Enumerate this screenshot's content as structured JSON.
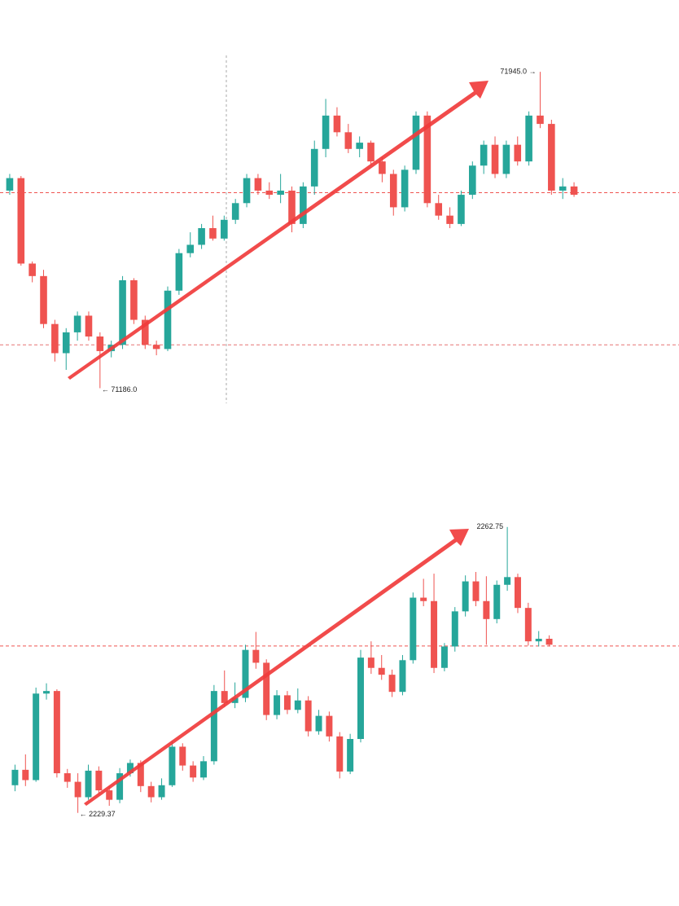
{
  "chart_data": [
    {
      "type": "candlestick",
      "up_color": "#26a69a",
      "down_color": "#ef5350",
      "ylim": [
        71140,
        72000
      ],
      "price_lines": [
        {
          "value": 71655,
          "color": "#ef5350"
        },
        {
          "value": 71290,
          "color": "#e57373"
        }
      ],
      "annotations": [
        {
          "text": "71945.0 →",
          "at": "high"
        },
        {
          "text": "← 71186.0",
          "at": "low"
        }
      ],
      "open": [
        71660,
        71690,
        71485,
        71455,
        71340,
        71270,
        71320,
        71360,
        71310,
        71275,
        71290,
        71445,
        71350,
        71290,
        71280,
        71420,
        71510,
        71530,
        71570,
        71545,
        71590,
        71630,
        71690,
        71660,
        71650,
        71660,
        71580,
        71670,
        71760,
        71840,
        71800,
        71760,
        71775,
        71730,
        71700,
        71620,
        71710,
        71840,
        71630,
        71600,
        71580,
        71650,
        71720,
        71770,
        71700,
        71770,
        71730,
        71840,
        71820,
        71660,
        71670
      ],
      "high": [
        71700,
        71695,
        71490,
        71470,
        71350,
        71330,
        71370,
        71370,
        71320,
        71300,
        71455,
        71450,
        71360,
        71300,
        71430,
        71520,
        71560,
        71580,
        71600,
        71600,
        71640,
        71700,
        71700,
        71680,
        71700,
        71670,
        71680,
        71780,
        71880,
        71860,
        71820,
        71790,
        71780,
        71740,
        71710,
        71720,
        71850,
        71850,
        71650,
        71620,
        71660,
        71730,
        71780,
        71790,
        71780,
        71790,
        71850,
        71945,
        71830,
        71690,
        71680
      ],
      "low": [
        71650,
        71480,
        71440,
        71330,
        71250,
        71230,
        71300,
        71300,
        71186,
        71260,
        71280,
        71340,
        71280,
        71265,
        71275,
        71410,
        71500,
        71520,
        71540,
        71540,
        71580,
        71620,
        71650,
        71640,
        71630,
        71560,
        71570,
        71650,
        71740,
        71790,
        71750,
        71740,
        71720,
        71680,
        71600,
        71610,
        71700,
        71620,
        71590,
        71570,
        71575,
        71640,
        71700,
        71690,
        71690,
        71720,
        71720,
        71810,
        71650,
        71640,
        71645
      ],
      "close": [
        71690,
        71485,
        71455,
        71340,
        71270,
        71320,
        71360,
        71310,
        71275,
        71290,
        71445,
        71350,
        71290,
        71280,
        71420,
        71510,
        71530,
        71570,
        71545,
        71590,
        71630,
        71690,
        71660,
        71650,
        71660,
        71580,
        71670,
        71760,
        71840,
        71800,
        71760,
        71775,
        71730,
        71700,
        71620,
        71710,
        71840,
        71630,
        71600,
        71580,
        71650,
        71720,
        71770,
        71700,
        71770,
        71730,
        71840,
        71820,
        71660,
        71670,
        71650
      ]
    },
    {
      "type": "candlestick",
      "up_color": "#26a69a",
      "down_color": "#ef5350",
      "ylim": [
        2226.3,
        2265.3
      ],
      "price_lines": [
        {
          "value": 2248.85,
          "color": "#ef5350"
        }
      ],
      "annotations": [
        {
          "text": "2262.75",
          "at": "high"
        },
        {
          "text": "← 2229.37",
          "at": "low"
        }
      ],
      "open": [
        2232.6,
        2234.4,
        2233.2,
        2243.3,
        2243.6,
        2234.0,
        2233.0,
        2231.2,
        2234.3,
        2232.0,
        2230.9,
        2234.0,
        2235.2,
        2232.5,
        2231.2,
        2232.6,
        2237.1,
        2234.9,
        2233.5,
        2235.4,
        2243.6,
        2242.2,
        2242.8,
        2248.4,
        2246.9,
        2240.8,
        2243.1,
        2241.4,
        2242.5,
        2238.9,
        2240.7,
        2238.3,
        2234.2,
        2238.0,
        2247.5,
        2246.3,
        2245.5,
        2243.5,
        2247.2,
        2254.5,
        2254.1,
        2246.3,
        2248.8,
        2252.9,
        2256.4,
        2254.1,
        2252.0,
        2256.0,
        2256.9,
        2253.3,
        2249.4,
        2249.7
      ],
      "high": [
        2235.0,
        2236.2,
        2244.0,
        2244.5,
        2243.8,
        2234.5,
        2234.0,
        2235.0,
        2234.8,
        2232.5,
        2234.6,
        2235.6,
        2235.5,
        2233.0,
        2233.4,
        2237.8,
        2237.5,
        2235.4,
        2236.0,
        2244.3,
        2246.0,
        2244.6,
        2249.0,
        2250.5,
        2247.3,
        2243.7,
        2243.6,
        2243.9,
        2243.0,
        2241.4,
        2241.2,
        2238.8,
        2238.6,
        2248.4,
        2249.4,
        2247.8,
        2246.1,
        2247.8,
        2255.1,
        2256.7,
        2257.3,
        2249.2,
        2253.4,
        2257.1,
        2257.5,
        2257.0,
        2256.5,
        2262.75,
        2257.3,
        2253.9,
        2250.6,
        2250.1
      ],
      "low": [
        2231.9,
        2232.5,
        2233.0,
        2242.6,
        2233.5,
        2232.3,
        2229.37,
        2230.9,
        2231.5,
        2230.2,
        2230.5,
        2233.6,
        2231.8,
        2230.6,
        2230.9,
        2232.4,
        2234.3,
        2233.0,
        2233.2,
        2235.0,
        2241.7,
        2241.6,
        2242.3,
        2246.2,
        2240.2,
        2240.3,
        2240.9,
        2241.0,
        2238.3,
        2238.5,
        2237.7,
        2233.4,
        2233.9,
        2237.6,
        2245.6,
        2244.9,
        2242.9,
        2243.1,
        2246.8,
        2253.5,
        2245.7,
        2245.9,
        2248.2,
        2252.3,
        2253.5,
        2249.0,
        2251.5,
        2255.3,
        2252.7,
        2248.9,
        2248.8,
        2248.8
      ],
      "close": [
        2234.4,
        2233.2,
        2243.3,
        2243.6,
        2234.0,
        2233.0,
        2231.2,
        2234.3,
        2232.0,
        2230.9,
        2234.0,
        2235.2,
        2232.5,
        2231.2,
        2232.6,
        2237.1,
        2234.9,
        2233.5,
        2235.4,
        2243.6,
        2242.2,
        2242.8,
        2248.4,
        2246.9,
        2240.8,
        2243.1,
        2241.4,
        2242.5,
        2238.9,
        2240.7,
        2238.3,
        2234.2,
        2238.0,
        2247.5,
        2246.3,
        2245.5,
        2243.5,
        2247.2,
        2254.5,
        2254.1,
        2246.3,
        2248.8,
        2252.9,
        2256.4,
        2254.1,
        2252.0,
        2256.0,
        2256.9,
        2253.3,
        2249.4,
        2249.7,
        2249.0
      ]
    }
  ]
}
